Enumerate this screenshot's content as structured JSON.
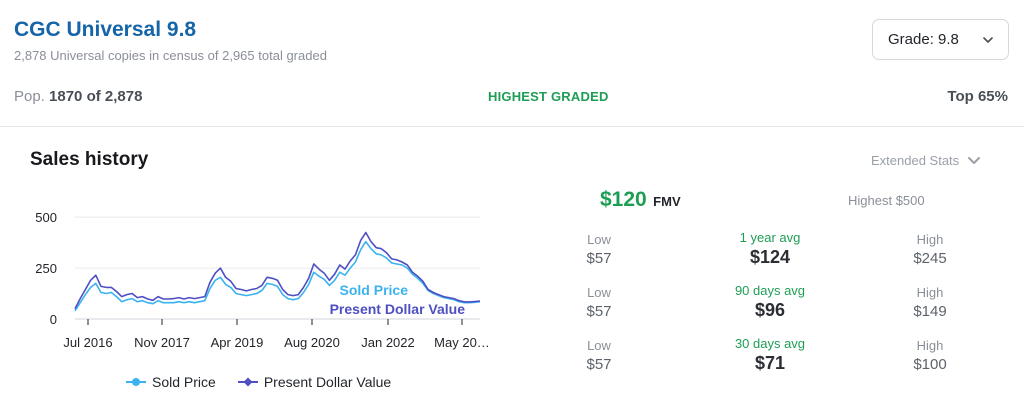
{
  "header": {
    "title": "CGC Universal 9.8",
    "subtitle": "2,878 Universal copies in census of 2,965 total graded",
    "grade_select": "Grade: 9.8"
  },
  "census": {
    "pop_label": "Pop.",
    "pop_value": "1870 of 2,878",
    "highest_label": "HIGHEST GRADED",
    "top_label": "Top 65%"
  },
  "sales": {
    "title": "Sales history",
    "extended_stats": "Extended Stats"
  },
  "icons": {
    "grade_dropdown": "chevron-down-icon",
    "extended_stats": "chevron-down-icon"
  },
  "colors": {
    "sold_price": "#3bb3ee",
    "present_value": "#4e4fc2",
    "accent_green": "#1e9e55",
    "title_blue": "#1565a8"
  },
  "chart_data": {
    "type": "line",
    "x_tick_labels": [
      "Jul 2016",
      "Nov 2017",
      "Apr 2019",
      "Aug 2020",
      "Jan 2022",
      "May 20…"
    ],
    "y_tick_labels": [
      "0",
      "250",
      "500"
    ],
    "ylim": [
      0,
      550
    ],
    "grid": true,
    "legend_position": "bottom",
    "series": [
      {
        "name": "Sold Price",
        "color": "#3bb3ee",
        "values": [
          40,
          80,
          120,
          155,
          175,
          130,
          125,
          130,
          110,
          85,
          95,
          100,
          85,
          90,
          80,
          75,
          90,
          80,
          80,
          80,
          85,
          80,
          85,
          80,
          85,
          90,
          150,
          190,
          205,
          170,
          155,
          125,
          120,
          115,
          120,
          125,
          140,
          175,
          170,
          160,
          120,
          100,
          95,
          100,
          130,
          170,
          230,
          210,
          195,
          165,
          190,
          230,
          215,
          250,
          280,
          340,
          380,
          345,
          320,
          315,
          300,
          275,
          270,
          265,
          250,
          220,
          200,
          175,
          140,
          125,
          115,
          105,
          100,
          95,
          85,
          80,
          80,
          82,
          85
        ]
      },
      {
        "name": "Present Dollar Value",
        "color": "#4e4fc2",
        "values": [
          50,
          100,
          145,
          190,
          215,
          160,
          155,
          155,
          135,
          110,
          120,
          125,
          105,
          110,
          98,
          92,
          110,
          98,
          98,
          100,
          105,
          98,
          105,
          100,
          105,
          110,
          180,
          225,
          250,
          205,
          185,
          150,
          145,
          138,
          145,
          150,
          165,
          205,
          200,
          190,
          145,
          120,
          115,
          120,
          155,
          200,
          270,
          245,
          225,
          190,
          220,
          265,
          245,
          285,
          315,
          385,
          425,
          380,
          350,
          345,
          325,
          295,
          290,
          280,
          265,
          230,
          210,
          185,
          145,
          130,
          120,
          110,
          105,
          100,
          90,
          84,
          84,
          86,
          88
        ]
      }
    ],
    "inline_labels": [
      "Sold Price",
      "Present Dollar Value"
    ]
  },
  "fmv": {
    "value": "$120",
    "label": "FMV",
    "highest": "Highest $500"
  },
  "stats": [
    {
      "low_label": "Low",
      "low_value": "$57",
      "avg_label": "1 year avg",
      "avg_value": "$124",
      "high_label": "High",
      "high_value": "$245"
    },
    {
      "low_label": "Low",
      "low_value": "$57",
      "avg_label": "90 days avg",
      "avg_value": "$96",
      "high_label": "High",
      "high_value": "$149"
    },
    {
      "low_label": "Low",
      "low_value": "$57",
      "avg_label": "30 days avg",
      "avg_value": "$71",
      "high_label": "High",
      "high_value": "$100"
    }
  ]
}
